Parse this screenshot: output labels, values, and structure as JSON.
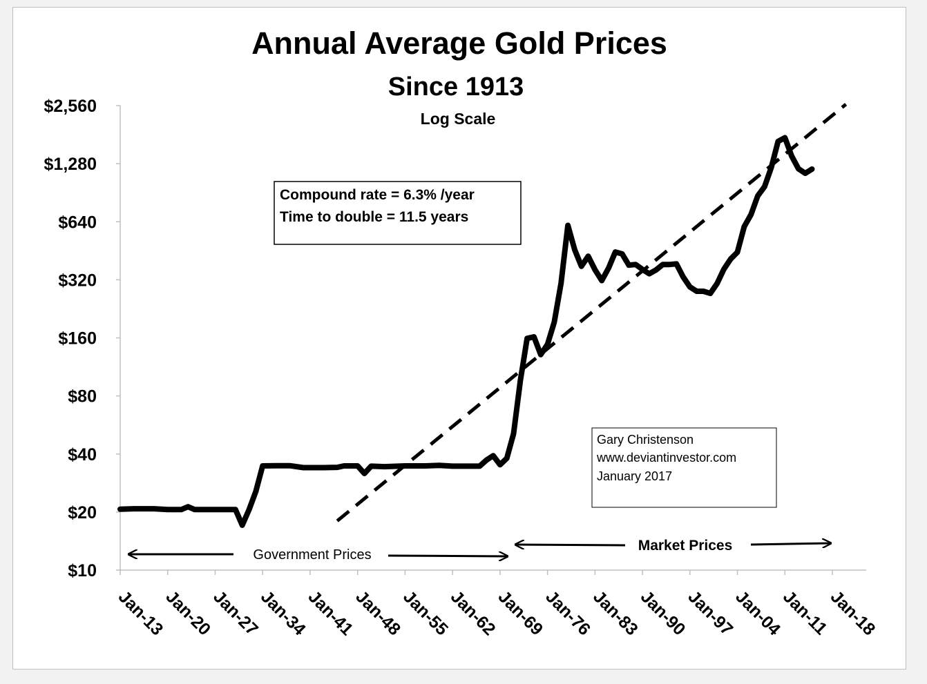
{
  "chart_data": {
    "type": "line",
    "title": "Annual Average Gold Prices",
    "subtitle": "Since 1913",
    "scale_label": "Log Scale",
    "y_scale": "log2",
    "ylim": [
      10,
      2560
    ],
    "xlim": [
      1913,
      2019
    ],
    "y_ticks": [
      {
        "value": 10,
        "label": "$10"
      },
      {
        "value": 20,
        "label": "$20"
      },
      {
        "value": 40,
        "label": "$40"
      },
      {
        "value": 80,
        "label": "$80"
      },
      {
        "value": 160,
        "label": "$160"
      },
      {
        "value": 320,
        "label": "$320"
      },
      {
        "value": 640,
        "label": "$640"
      },
      {
        "value": 1280,
        "label": "$1,280"
      },
      {
        "value": 2560,
        "label": "$2,560"
      }
    ],
    "x_ticks": [
      {
        "value": 1913,
        "label": "Jan-13"
      },
      {
        "value": 1920,
        "label": "Jan-20"
      },
      {
        "value": 1927,
        "label": "Jan-27"
      },
      {
        "value": 1934,
        "label": "Jan-34"
      },
      {
        "value": 1941,
        "label": "Jan-41"
      },
      {
        "value": 1948,
        "label": "Jan-48"
      },
      {
        "value": 1955,
        "label": "Jan-55"
      },
      {
        "value": 1962,
        "label": "Jan-62"
      },
      {
        "value": 1969,
        "label": "Jan-69"
      },
      {
        "value": 1976,
        "label": "Jan-76"
      },
      {
        "value": 1983,
        "label": "Jan-83"
      },
      {
        "value": 1990,
        "label": "Jan-90"
      },
      {
        "value": 1997,
        "label": "Jan-97"
      },
      {
        "value": 2004,
        "label": "Jan-04"
      },
      {
        "value": 2011,
        "label": "Jan-11"
      },
      {
        "value": 2018,
        "label": "Jan-18"
      }
    ],
    "grid": false,
    "series": [
      {
        "color": "#000000",
        "points": [
          [
            1913,
            20.7
          ],
          [
            1915,
            20.8
          ],
          [
            1918,
            20.8
          ],
          [
            1920,
            20.6
          ],
          [
            1922,
            20.6
          ],
          [
            1923,
            21.3
          ],
          [
            1924,
            20.6
          ],
          [
            1926,
            20.6
          ],
          [
            1930,
            20.6
          ],
          [
            1931,
            17.1
          ],
          [
            1932,
            20.6
          ],
          [
            1933,
            25.6
          ],
          [
            1934,
            34.7
          ],
          [
            1936,
            34.8
          ],
          [
            1938,
            34.8
          ],
          [
            1940,
            34.0
          ],
          [
            1943,
            34.0
          ],
          [
            1945,
            34.1
          ],
          [
            1946,
            34.7
          ],
          [
            1948,
            34.7
          ],
          [
            1949,
            31.7
          ],
          [
            1950,
            34.6
          ],
          [
            1952,
            34.4
          ],
          [
            1955,
            34.7
          ],
          [
            1958,
            34.7
          ],
          [
            1960,
            34.9
          ],
          [
            1962,
            34.6
          ],
          [
            1966,
            34.6
          ],
          [
            1967,
            37.2
          ],
          [
            1968,
            39.2
          ],
          [
            1969,
            35.2
          ],
          [
            1970,
            38.0
          ],
          [
            1971,
            51.0
          ],
          [
            1972,
            96.0
          ],
          [
            1973,
            159.0
          ],
          [
            1974,
            162.0
          ],
          [
            1975,
            131.0
          ],
          [
            1976,
            148.0
          ],
          [
            1977,
            193.0
          ],
          [
            1978,
            307.0
          ],
          [
            1979,
            613.0
          ],
          [
            1980,
            459.0
          ],
          [
            1981,
            376.0
          ],
          [
            1982,
            424.0
          ],
          [
            1983,
            361.0
          ],
          [
            1984,
            317.0
          ],
          [
            1985,
            368.0
          ],
          [
            1986,
            446.0
          ],
          [
            1987,
            436.0
          ],
          [
            1988,
            381.0
          ],
          [
            1989,
            384.0
          ],
          [
            1990,
            362.0
          ],
          [
            1991,
            344.0
          ],
          [
            1992,
            360.0
          ],
          [
            1993,
            384.0
          ],
          [
            1994,
            384.0
          ],
          [
            1995,
            387.0
          ],
          [
            1996,
            331.0
          ],
          [
            1997,
            294.0
          ],
          [
            1998,
            279.0
          ],
          [
            1999,
            279.0
          ],
          [
            2000,
            272.0
          ],
          [
            2001,
            306.0
          ],
          [
            2002,
            363.0
          ],
          [
            2003,
            410.0
          ],
          [
            2004,
            445.0
          ],
          [
            2005,
            604.0
          ],
          [
            2006,
            697.0
          ],
          [
            2007,
            872.0
          ],
          [
            2008,
            972.0
          ],
          [
            2009,
            1224.0
          ],
          [
            2010,
            1669.0
          ],
          [
            2011,
            1745.0
          ],
          [
            2012,
            1400.0
          ],
          [
            2013,
            1205.0
          ],
          [
            2014,
            1141.0
          ],
          [
            2015,
            1200.0
          ]
        ]
      }
    ],
    "trendline": {
      "style": "dashed",
      "points": [
        [
          1945,
          18.0
        ],
        [
          2020,
          2600.0
        ]
      ]
    },
    "annotations": {
      "rate_box": {
        "line1": "Compound rate = 6.3% /year",
        "line2": "Time to double = 11.5 years"
      },
      "credit_box": {
        "line1": "Gary Christenson",
        "line2": "www.deviantinvestor.com",
        "line3": "January 2017"
      },
      "government_prices": "Government Prices",
      "market_prices": "Market Prices"
    }
  }
}
